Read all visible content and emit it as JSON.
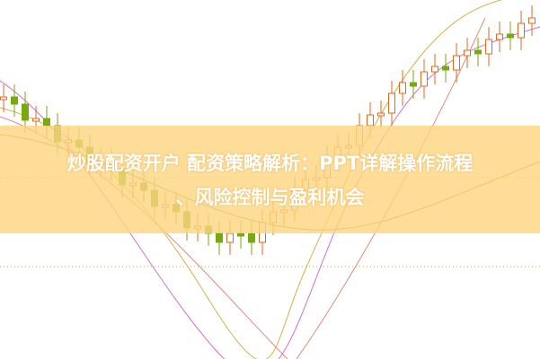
{
  "article": {
    "title_line1": "炒股配资开户 配资策略解析：PPT详解操作流程",
    "title_line2": "、风险控制与盈利机会"
  },
  "colors": {
    "bullish": "#e06a1c",
    "bearish": "#7aa80f",
    "banner": "#fcd680",
    "ma_lines": [
      "#d8b04a",
      "#6a9a3a",
      "#d070d0",
      "#e08a80"
    ]
  },
  "background": "stock-candlestick-chart"
}
